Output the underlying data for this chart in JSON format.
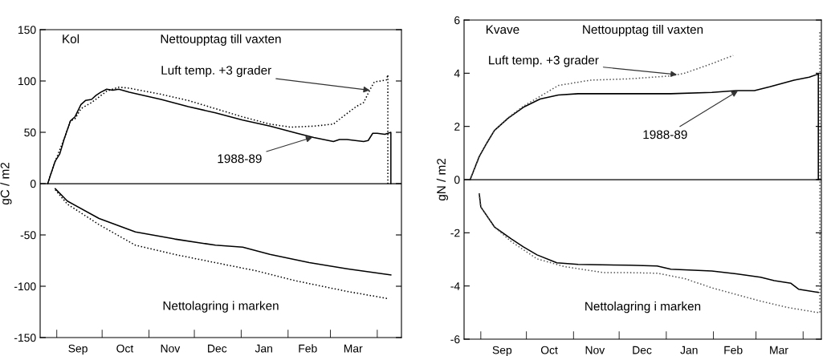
{
  "chart_data": [
    {
      "type": "line",
      "title": "Kol",
      "ylabel": "gC / m2",
      "annotations": [
        "Nettoupptag till vaxten",
        "Nettolagring i marken",
        {
          "text": "Luft temp. +3 grader",
          "x": "1989-03-27",
          "y": 91
        },
        {
          "text": "1988-89",
          "x": "1989-02-17",
          "y": 45
        }
      ],
      "xlim": [
        "1988-08-21",
        "1989-04-17"
      ],
      "ylim": [
        -150,
        150
      ],
      "yticks": [
        -150,
        -100,
        -50,
        0,
        50,
        100,
        150
      ],
      "xticks": [
        {
          "value": "1988-09-01",
          "label": null
        },
        {
          "value": "1988-09-15",
          "label": "Sep"
        },
        {
          "value": "1988-10-01",
          "label": null
        },
        {
          "value": "1988-10-16",
          "label": "Oct"
        },
        {
          "value": "1988-11-01",
          "label": null
        },
        {
          "value": "1988-11-15",
          "label": "Nov"
        },
        {
          "value": "1988-12-01",
          "label": null
        },
        {
          "value": "1988-12-16",
          "label": "Dec"
        },
        {
          "value": "1989-01-01",
          "label": null
        },
        {
          "value": "1989-01-16",
          "label": "Jan"
        },
        {
          "value": "1989-02-01",
          "label": null
        },
        {
          "value": "1989-02-14",
          "label": "Feb"
        },
        {
          "value": "1989-03-01",
          "label": null
        },
        {
          "value": "1989-03-16",
          "label": "Mar"
        },
        {
          "value": "1989-04-01",
          "label": null
        }
      ],
      "ref_lines": [
        {
          "axis": "y",
          "value": 0,
          "label": null,
          "color": "#000000",
          "line_style": "solid"
        }
      ],
      "grid": false,
      "legend": false,
      "marker": "none",
      "series": [
        {
          "color": "#000000",
          "line_style": "solid",
          "x": [
            "1988-08-26",
            "1988-08-28",
            "1988-08-31",
            "1988-09-03",
            "1988-09-06",
            "1988-09-10",
            "1988-09-13",
            "1988-09-17",
            "1988-09-20",
            "1988-09-24",
            "1988-09-27",
            "1988-09-30",
            "1988-10-04",
            "1988-10-08",
            "1988-10-12",
            "1988-10-19",
            "1988-11-09",
            "1988-11-27",
            "1988-12-15",
            "1989-01-02",
            "1989-01-20",
            "1989-02-07",
            "1989-02-18",
            "1989-03-03",
            "1989-03-07",
            "1989-03-12",
            "1989-03-23",
            "1989-03-26",
            "1989-03-29",
            "1989-04-01",
            "1989-04-06",
            "1989-04-10",
            "1989-04-10"
          ],
          "values": [
            0,
            9,
            22,
            29,
            44,
            61,
            65,
            77,
            81,
            82,
            86,
            89,
            92,
            91,
            92,
            89,
            82,
            75,
            69,
            62,
            56,
            49,
            45,
            41,
            43,
            43,
            41,
            42,
            49,
            49,
            48,
            50,
            0
          ]
        },
        {
          "color": "#000000",
          "line_style": "dotted",
          "x": [
            "1988-08-26",
            "1988-08-28",
            "1988-08-31",
            "1988-09-06",
            "1988-09-10",
            "1988-09-13",
            "1988-09-17",
            "1988-09-24",
            "1988-10-04",
            "1988-10-12",
            "1988-10-19",
            "1988-11-09",
            "1988-11-27",
            "1988-12-15",
            "1989-01-02",
            "1989-01-20",
            "1989-02-03",
            "1989-02-18",
            "1989-03-03",
            "1989-03-09",
            "1989-03-18",
            "1989-03-23",
            "1989-03-27",
            "1989-03-30",
            "1989-04-07",
            "1989-04-08",
            "1989-04-08"
          ],
          "values": [
            0,
            9,
            22,
            44,
            61,
            63,
            73,
            79,
            90,
            94,
            93,
            87,
            81,
            73,
            65,
            58,
            55,
            56,
            58,
            65,
            75,
            79,
            91,
            99,
            101,
            106,
            0
          ]
        },
        {
          "color": "#000000",
          "line_style": "solid",
          "x": [
            "1988-08-31",
            "1988-09-08",
            "1988-09-29",
            "1988-10-23",
            "1988-11-18",
            "1988-12-15",
            "1989-01-02",
            "1989-01-20",
            "1989-02-15",
            "1989-03-12",
            "1989-04-10"
          ],
          "values": [
            -5,
            -17,
            -34,
            -47,
            -54,
            -60,
            -62,
            -69,
            -77,
            -83,
            -89
          ]
        },
        {
          "color": "#000000",
          "line_style": "dotted",
          "x": [
            "1988-08-31",
            "1988-09-08",
            "1988-09-29",
            "1988-10-23",
            "1988-11-18",
            "1988-12-15",
            "1989-01-11",
            "1989-02-07",
            "1989-03-12",
            "1989-04-08"
          ],
          "values": [
            -6,
            -20,
            -40,
            -60,
            -69,
            -77,
            -85,
            -95,
            -105,
            -112
          ]
        }
      ]
    },
    {
      "type": "line",
      "title": "Kvave",
      "ylabel": "gN / m2",
      "annotations": [
        "Nettoupptag till vaxten",
        "Nettolagring i marken",
        {
          "text": "Luft temp. +3 grader",
          "x": "1989-01-08",
          "y": 3.95
        },
        {
          "text": "1988-89",
          "x": "1989-02-17",
          "y": 3.33
        }
      ],
      "xlim": [
        "1988-08-21",
        "1989-04-13"
      ],
      "ylim": [
        -6,
        6
      ],
      "yticks": [
        -6,
        -4,
        -2,
        0,
        2,
        4,
        6
      ],
      "xticks": [
        {
          "value": "1988-09-01",
          "label": null
        },
        {
          "value": "1988-09-15",
          "label": "Sep"
        },
        {
          "value": "1988-10-01",
          "label": null
        },
        {
          "value": "1988-10-16",
          "label": "Oct"
        },
        {
          "value": "1988-11-01",
          "label": null
        },
        {
          "value": "1988-11-15",
          "label": "Nov"
        },
        {
          "value": "1988-12-01",
          "label": null
        },
        {
          "value": "1988-12-16",
          "label": "Dec"
        },
        {
          "value": "1989-01-01",
          "label": null
        },
        {
          "value": "1989-01-16",
          "label": "Jan"
        },
        {
          "value": "1989-02-01",
          "label": null
        },
        {
          "value": "1989-02-14",
          "label": "Feb"
        },
        {
          "value": "1989-03-01",
          "label": null
        },
        {
          "value": "1989-03-16",
          "label": "Mar"
        },
        {
          "value": "1989-04-01",
          "label": null
        }
      ],
      "ref_lines": [
        {
          "axis": "y",
          "value": 0,
          "label": null,
          "color": "#000000",
          "line_style": "solid"
        }
      ],
      "grid": false,
      "legend": false,
      "marker": "none",
      "series": [
        {
          "color": "#000000",
          "line_style": "solid",
          "x": [
            "1988-08-25",
            "1988-08-31",
            "1988-09-05",
            "1988-09-10",
            "1988-09-19",
            "1988-09-29",
            "1988-10-10",
            "1988-10-22",
            "1988-11-04",
            "1988-12-08",
            "1989-01-04",
            "1989-01-31",
            "1989-02-16",
            "1989-02-28",
            "1989-03-10",
            "1989-03-26",
            "1989-04-05",
            "1989-04-11",
            "1989-04-11"
          ],
          "values": [
            0,
            0.87,
            1.38,
            1.85,
            2.31,
            2.72,
            3.03,
            3.18,
            3.23,
            3.23,
            3.23,
            3.28,
            3.35,
            3.35,
            3.49,
            3.74,
            3.85,
            3.97,
            0
          ]
        },
        {
          "color": "#555555",
          "line_style": "dotted",
          "x": [
            "1988-08-25",
            "1988-08-31",
            "1988-09-05",
            "1988-09-10",
            "1988-09-19",
            "1988-09-29",
            "1988-10-10",
            "1988-10-22",
            "1988-11-12",
            "1988-12-08",
            "1989-01-04",
            "1989-01-13",
            "1989-01-31",
            "1989-02-14"
          ],
          "values": [
            0,
            0.87,
            1.38,
            1.85,
            2.33,
            2.76,
            3.13,
            3.54,
            3.74,
            3.79,
            3.9,
            4.0,
            4.36,
            4.67
          ]
        },
        {
          "color": "#000000",
          "line_style": "solid",
          "x": [
            "1988-08-31",
            "1988-09-01",
            "1988-09-10",
            "1988-09-21",
            "1988-09-29",
            "1988-10-08",
            "1988-10-21",
            "1988-11-04",
            "1988-12-08",
            "1988-12-26",
            "1989-01-04",
            "1989-01-31",
            "1989-02-16",
            "1989-03-04",
            "1989-03-13",
            "1989-03-24",
            "1989-03-29",
            "1989-04-11"
          ],
          "values": [
            -0.54,
            -1.03,
            -1.78,
            -2.23,
            -2.53,
            -2.83,
            -3.13,
            -3.19,
            -3.22,
            -3.25,
            -3.37,
            -3.44,
            -3.54,
            -3.67,
            -3.8,
            -3.9,
            -4.12,
            -4.24
          ]
        },
        {
          "color": "#555555",
          "line_style": "dotted",
          "x": [
            "1988-08-31",
            "1988-09-01",
            "1988-09-10",
            "1988-09-21",
            "1988-10-08",
            "1988-10-26",
            "1988-11-21",
            "1988-12-08",
            "1988-12-26",
            "1989-01-13",
            "1989-01-31",
            "1989-02-16",
            "1989-03-04",
            "1989-03-22",
            "1989-04-12",
            "1989-04-12"
          ],
          "values": [
            -0.54,
            -1.03,
            -1.78,
            -2.33,
            -2.98,
            -3.27,
            -3.5,
            -3.5,
            -3.52,
            -3.72,
            -4.07,
            -4.32,
            -4.57,
            -4.81,
            -5.01,
            5.6
          ]
        }
      ]
    }
  ]
}
